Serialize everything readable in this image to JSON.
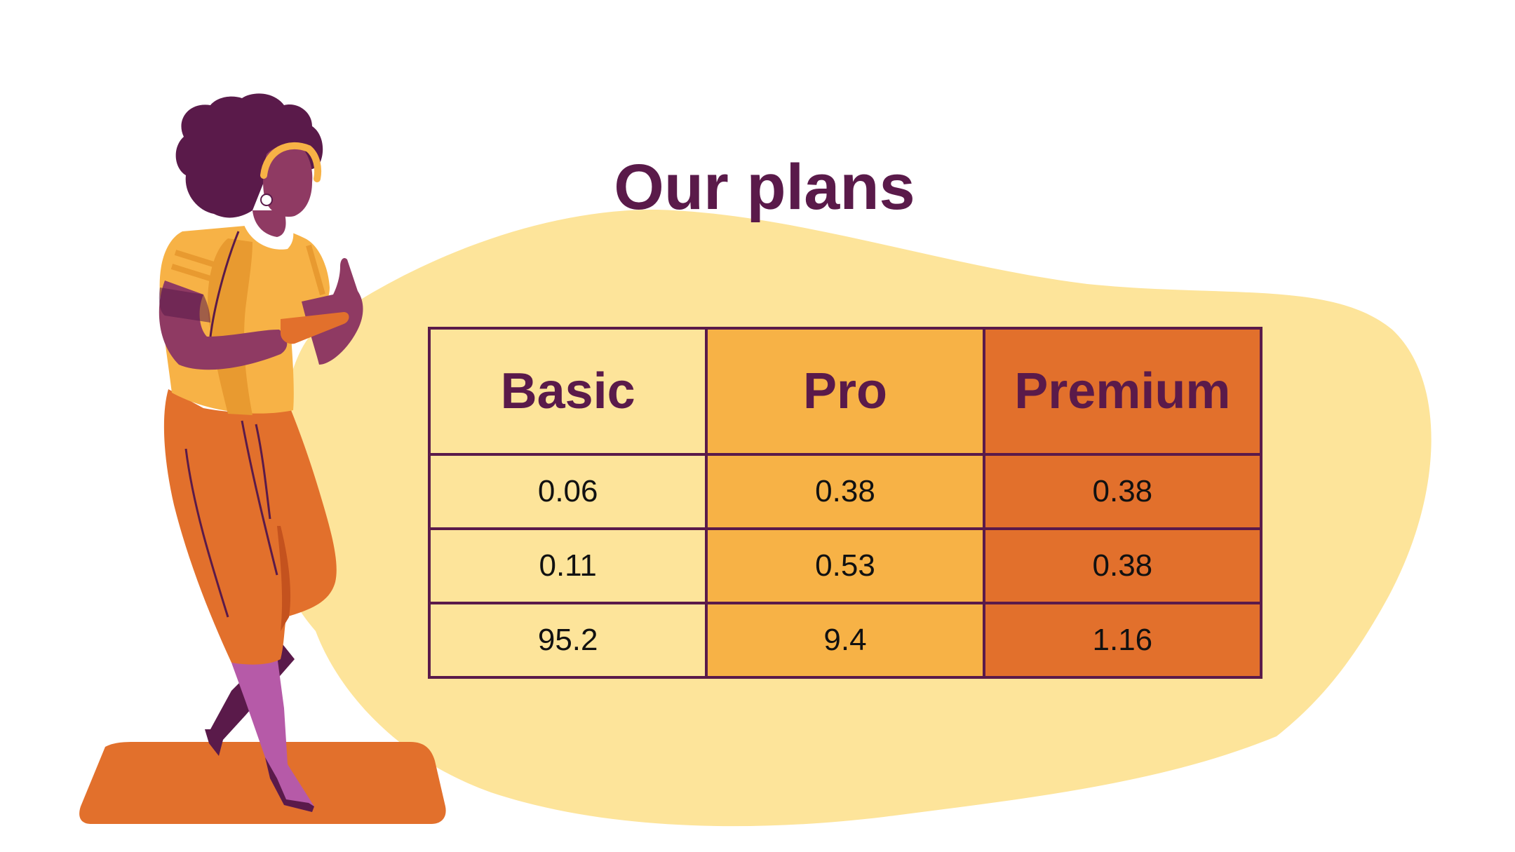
{
  "title": "Our plans",
  "table": {
    "headers": [
      "Basic",
      "Pro",
      "Premium"
    ],
    "rows": [
      [
        "0.06",
        "0.38",
        "0.38"
      ],
      [
        "0.11",
        "0.53",
        "0.38"
      ],
      [
        "95.2",
        "9.4",
        "1.16"
      ]
    ]
  },
  "colors": {
    "title": "#5a1a4a",
    "basic": "#fde49a",
    "pro": "#f7b246",
    "premium": "#e2702c",
    "blob": "#fde49a"
  }
}
